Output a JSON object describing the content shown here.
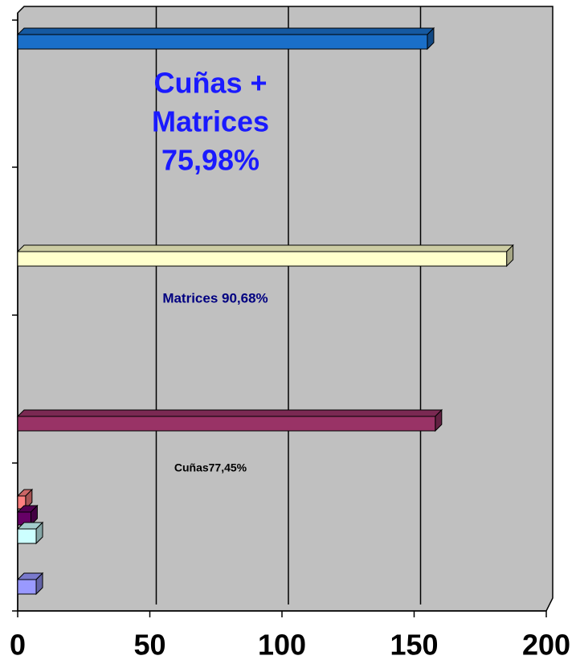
{
  "chart_data": {
    "type": "bar3d_horizontal",
    "categories": [
      null,
      null,
      null,
      null
    ],
    "series": [
      {
        "color": "#1a6fc9",
        "values": [
          155,
          null,
          null,
          null
        ]
      },
      {
        "color": "#ffffcc",
        "values": [
          null,
          185,
          null,
          null
        ]
      },
      {
        "color": "#993366",
        "values": [
          null,
          null,
          158,
          null
        ]
      },
      {
        "color": "#ff8080",
        "values": [
          null,
          null,
          null,
          3
        ]
      },
      {
        "color": "#660066",
        "values": [
          null,
          null,
          null,
          5
        ]
      },
      {
        "color": "#ccffff",
        "values": [
          null,
          null,
          null,
          7
        ]
      },
      {
        "color": "#9999ff",
        "values": [
          null,
          null,
          null,
          7
        ]
      }
    ],
    "xlim": [
      0,
      200
    ],
    "xticks": [
      0,
      50,
      100,
      150,
      200
    ],
    "grid": true,
    "annotations": [
      "Cuñas +",
      "Matrices",
      "75,98%",
      "Matrices 90,68%",
      "Cuñas77,45%"
    ]
  }
}
